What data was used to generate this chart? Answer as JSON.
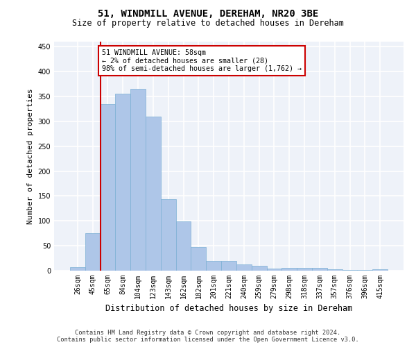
{
  "title": "51, WINDMILL AVENUE, DEREHAM, NR20 3BE",
  "subtitle": "Size of property relative to detached houses in Dereham",
  "xlabel": "Distribution of detached houses by size in Dereham",
  "ylabel": "Number of detached properties",
  "bar_color": "#aec6e8",
  "bar_edge_color": "#7bafd4",
  "background_color": "#eef2f9",
  "grid_color": "#ffffff",
  "categories": [
    "26sqm",
    "45sqm",
    "65sqm",
    "84sqm",
    "104sqm",
    "123sqm",
    "143sqm",
    "162sqm",
    "182sqm",
    "201sqm",
    "221sqm",
    "240sqm",
    "259sqm",
    "279sqm",
    "298sqm",
    "318sqm",
    "337sqm",
    "357sqm",
    "376sqm",
    "396sqm",
    "415sqm"
  ],
  "values": [
    7,
    75,
    335,
    355,
    365,
    310,
    143,
    99,
    47,
    20,
    20,
    13,
    10,
    4,
    6,
    6,
    5,
    3,
    2,
    1,
    3
  ],
  "vline_x_index": 1.5,
  "annotation_text": "51 WINDMILL AVENUE: 58sqm\n← 2% of detached houses are smaller (28)\n98% of semi-detached houses are larger (1,762) →",
  "annotation_box_color": "#ffffff",
  "annotation_box_edge": "#cc0000",
  "vline_color": "#cc0000",
  "footer1": "Contains HM Land Registry data © Crown copyright and database right 2024.",
  "footer2": "Contains public sector information licensed under the Open Government Licence v3.0.",
  "ylim": [
    0,
    460
  ],
  "yticks": [
    0,
    50,
    100,
    150,
    200,
    250,
    300,
    350,
    400,
    450
  ]
}
